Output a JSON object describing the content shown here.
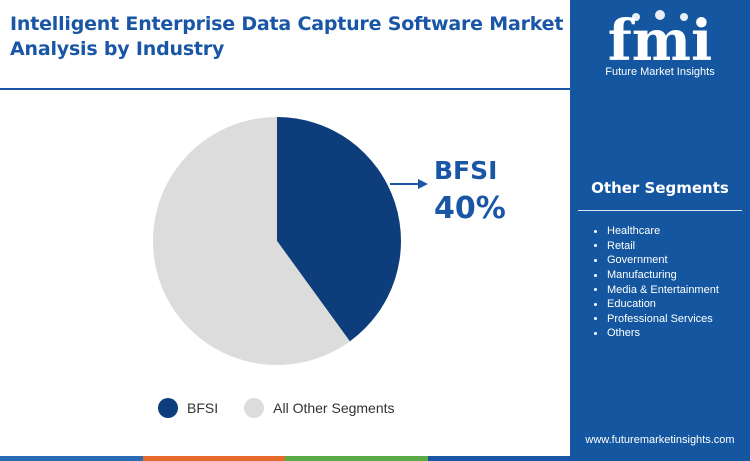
{
  "title": "Intelligent Enterprise Data Capture Software Market Analysis by Industry",
  "colors": {
    "primary": "#1a56a6",
    "bfsi": "#0d3d7a",
    "other": "#dcdcdc",
    "sidebar": "#1456a0",
    "bottom_bar": [
      "#2a6cb5",
      "#e56a2c",
      "#5aab45",
      "#1a56a6"
    ]
  },
  "callout": {
    "label": "BFSI",
    "value": "40%"
  },
  "legend": [
    {
      "label": "BFSI",
      "color": "#0d3d7a"
    },
    {
      "label": "All Other Segments",
      "color": "#dcdcdc"
    }
  ],
  "sidebar": {
    "logo_text": "fmi",
    "tagline": "Future Market Insights",
    "segments_title": "Other Segments",
    "segments": [
      "Healthcare",
      "Retail",
      "Government",
      "Manufacturing",
      "Media & Entertainment",
      "Education",
      "Professional Services",
      "Others"
    ],
    "url": "www.futuremarketinsights.com"
  },
  "chart_data": {
    "type": "pie",
    "title": "Intelligent Enterprise Data Capture Software Market Analysis by Industry",
    "categories": [
      "BFSI",
      "All Other Segments"
    ],
    "values": [
      40,
      60
    ],
    "unit": "%",
    "colors": [
      "#0d3d7a",
      "#dcdcdc"
    ],
    "legend": "bottom"
  }
}
